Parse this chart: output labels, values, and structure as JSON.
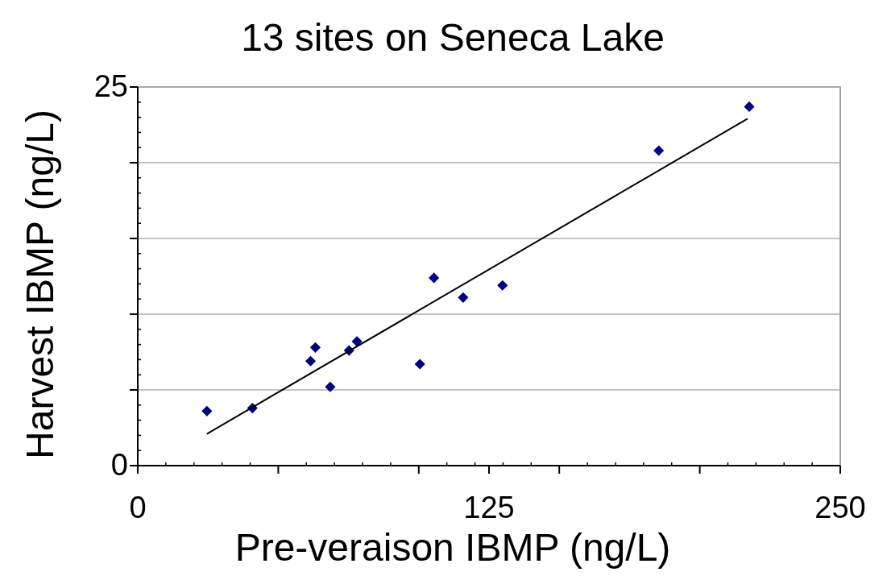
{
  "chart_data": {
    "type": "scatter",
    "title": "13 sites on Seneca Lake",
    "xlabel": "Pre-veraison IBMP (ng/L)",
    "ylabel": "Harvest IBMP (ng/L)",
    "xlim": [
      0,
      250
    ],
    "ylim": [
      0,
      25
    ],
    "xticks": [
      0,
      {
        "value": 50,
        "label": null
      },
      {
        "value": 100,
        "label": null
      },
      125,
      {
        "value": 150,
        "label": null
      },
      {
        "value": 200,
        "label": null
      },
      250
    ],
    "yticks": [
      0,
      {
        "value": 5,
        "label": null
      },
      {
        "value": 10,
        "label": null
      },
      {
        "value": 15,
        "label": null
      },
      {
        "value": 20,
        "label": null
      },
      25
    ],
    "grid": "y",
    "series": [
      {
        "marker": "diamond",
        "color": "#000080",
        "x": [
          24.6,
          40.8,
          61.5,
          63.2,
          68.5,
          75.2,
          78.0,
          100.4,
          105.4,
          115.8,
          129.8,
          185.4,
          217.6
        ],
        "values": [
          3.6,
          3.8,
          6.9,
          7.8,
          5.2,
          7.6,
          8.2,
          6.7,
          12.4,
          11.1,
          11.9,
          20.8,
          23.7
        ]
      },
      {
        "type": "line",
        "color": "#000000",
        "x": [
          24.6,
          217.0
        ],
        "values": [
          2.1,
          22.9
        ]
      }
    ]
  }
}
